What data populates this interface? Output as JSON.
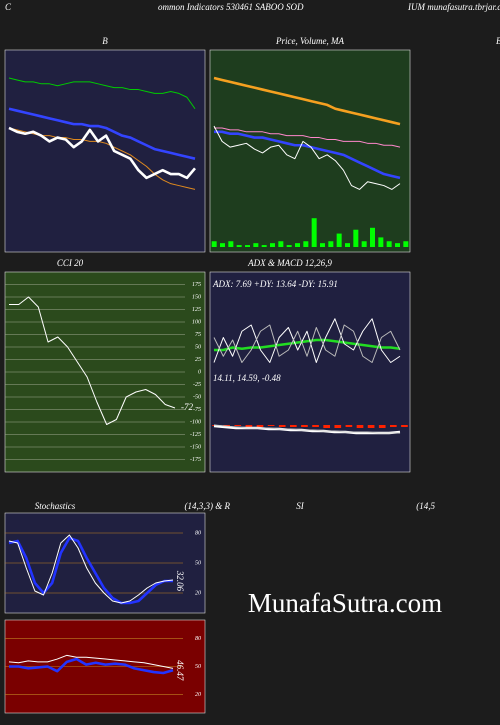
{
  "header": {
    "left": "C",
    "middle": "ommon  Indicators 530461 SABOO SOD",
    "right": "IUM munafasutra.tbrjar.com",
    "edge": "B"
  },
  "watermark": "MunafaSutra.com",
  "chart_data": [
    {
      "type": "line",
      "title": "B",
      "ylim": [
        0,
        100
      ],
      "series": [
        {
          "color": "#00cc00",
          "values": [
            88,
            87,
            86,
            86,
            85,
            85,
            84,
            85,
            86,
            86,
            86,
            85,
            84,
            83,
            83,
            82,
            82,
            81,
            80,
            80,
            81,
            80,
            78,
            72
          ]
        },
        {
          "color": "#3344ff",
          "thick": true,
          "values": [
            72,
            71,
            70,
            69,
            68,
            67,
            66,
            65,
            64,
            64,
            63,
            63,
            62,
            60,
            58,
            57,
            55,
            53,
            51,
            50,
            49,
            48,
            47,
            46
          ]
        },
        {
          "color": "#e08a1e",
          "values": [
            62,
            61,
            60,
            59,
            58,
            58,
            57,
            57,
            56,
            56,
            55,
            55,
            54,
            52,
            50,
            48,
            45,
            42,
            38,
            35,
            33,
            32,
            31,
            30
          ]
        },
        {
          "color": "#ffffff",
          "thick": true,
          "values": [
            62,
            60,
            59,
            60,
            58,
            55,
            57,
            56,
            52,
            55,
            61,
            55,
            58,
            50,
            48,
            46,
            40,
            36,
            38,
            40,
            38,
            38,
            36,
            41
          ]
        }
      ]
    },
    {
      "type": "line",
      "title": "Price, Volume, MA",
      "ylim": [
        0,
        100
      ],
      "bars": {
        "color": "#00ff00",
        "values": [
          3,
          2,
          3,
          1,
          1,
          2,
          1,
          2,
          3,
          1,
          2,
          3,
          15,
          2,
          3,
          7,
          2,
          9,
          3,
          10,
          5,
          3,
          2,
          3
        ]
      },
      "series": [
        {
          "color": "#f5a020",
          "thick": true,
          "values": [
            88,
            87,
            86,
            85,
            84,
            83,
            82,
            81,
            80,
            79,
            78,
            77,
            76,
            75,
            74,
            72,
            71,
            70,
            69,
            68,
            67,
            66,
            65,
            64
          ]
        },
        {
          "color": "#ff88cc",
          "values": [
            62,
            62,
            61,
            61,
            60,
            60,
            60,
            59,
            59,
            58,
            58,
            58,
            57,
            57,
            56,
            56,
            55,
            55,
            55,
            54,
            54,
            53,
            53,
            52
          ]
        },
        {
          "color": "#3344ff",
          "thick": true,
          "values": [
            60,
            60,
            59,
            59,
            58,
            57,
            57,
            56,
            55,
            54,
            53,
            53,
            52,
            51,
            50,
            49,
            48,
            46,
            44,
            42,
            40,
            38,
            37,
            36
          ]
        },
        {
          "color": "#ffffff",
          "values": [
            63,
            55,
            52,
            53,
            54,
            51,
            49,
            52,
            53,
            48,
            46,
            55,
            52,
            46,
            48,
            45,
            40,
            32,
            30,
            34,
            33,
            32,
            30,
            33
          ]
        }
      ]
    },
    {
      "type": "line",
      "title": "CCI 20",
      "ylim": [
        -200,
        200
      ],
      "grid": true,
      "yticks": [
        175,
        150,
        125,
        100,
        75,
        50,
        25,
        0,
        -25,
        -50,
        -75,
        -100,
        -125,
        -150,
        -175
      ],
      "annotation": "-72",
      "series": [
        {
          "color": "#ffffff",
          "values": [
            135,
            135,
            150,
            130,
            60,
            70,
            50,
            20,
            -10,
            -60,
            -105,
            -95,
            -50,
            -40,
            -35,
            -45,
            -65,
            -72
          ]
        }
      ]
    },
    {
      "type": "line",
      "title": "ADX  & MACD 12,26,9",
      "subtitle": "ADX: 7.69 +DY: 13.64  -DY: 15.91",
      "ylim": [
        0,
        60
      ],
      "series": [
        {
          "color": "#22dd22",
          "thick": true,
          "values": [
            20,
            20,
            22,
            21,
            22,
            22,
            23,
            24,
            25,
            26,
            27,
            28,
            28,
            27,
            26,
            25,
            24,
            23,
            22,
            22,
            21
          ]
        },
        {
          "color": "#ffffff",
          "values": [
            10,
            30,
            15,
            35,
            40,
            20,
            10,
            30,
            38,
            20,
            35,
            10,
            30,
            45,
            25,
            20,
            35,
            45,
            20,
            10,
            15
          ]
        },
        {
          "color": "#bbbbbb",
          "values": [
            30,
            15,
            28,
            10,
            20,
            35,
            40,
            15,
            20,
            35,
            15,
            38,
            20,
            15,
            40,
            35,
            15,
            10,
            30,
            35,
            20
          ]
        }
      ]
    },
    {
      "type": "line",
      "title": "14.11,  14.59,  -0.48",
      "ylim": [
        -30,
        30
      ],
      "bars": {
        "color": "#ff2200",
        "values": [
          -1,
          -1,
          -1,
          -2,
          -2,
          -1,
          -2,
          -2,
          -2,
          -2,
          -3,
          -3,
          -2,
          -3,
          -3,
          -3,
          -2,
          -2
        ]
      },
      "series": [
        {
          "color": "#ffffff",
          "thick": true,
          "values": [
            -1,
            -2,
            -3,
            -3,
            -3,
            -4,
            -4,
            -5,
            -5,
            -6,
            -6,
            -7,
            -7,
            -8,
            -8,
            -8,
            -8,
            -7
          ]
        },
        {
          "color": "#cccccc",
          "values": [
            0,
            -1,
            -2,
            -3,
            -3,
            -3,
            -4,
            -4,
            -5,
            -5,
            -6,
            -6,
            -7,
            -7,
            -7,
            -8,
            -8,
            -8
          ]
        }
      ]
    },
    {
      "type": "line",
      "title": "Stochastics",
      "subtitle": "(14,3,3) & R",
      "ylim": [
        0,
        100
      ],
      "grid": true,
      "yticks": [
        80,
        50,
        20
      ],
      "annotation": "32.06",
      "series": [
        {
          "color": "#2233ff",
          "thick": true,
          "values": [
            70,
            72,
            55,
            30,
            20,
            30,
            60,
            75,
            72,
            55,
            40,
            25,
            15,
            10,
            10,
            12,
            20,
            28,
            32,
            32
          ]
        },
        {
          "color": "#ffffff",
          "values": [
            72,
            70,
            45,
            22,
            18,
            40,
            70,
            78,
            65,
            45,
            30,
            20,
            12,
            10,
            12,
            18,
            25,
            30,
            32,
            33
          ]
        }
      ]
    },
    {
      "type": "line",
      "title": "SI",
      "subtitle": "(14,5",
      "ylim": [
        0,
        100
      ],
      "grid": true,
      "yticks": [
        80,
        50,
        20
      ],
      "annotation": "46.47",
      "series": [
        {
          "color": "#2233ff",
          "thick": true,
          "values": [
            50,
            50,
            48,
            49,
            50,
            45,
            55,
            58,
            52,
            54,
            52,
            53,
            52,
            48,
            46,
            44,
            43,
            46
          ]
        },
        {
          "color": "#ffffff",
          "values": [
            55,
            54,
            56,
            55,
            55,
            58,
            62,
            60,
            60,
            59,
            58,
            57,
            56,
            55,
            54,
            52,
            50,
            48
          ]
        }
      ]
    }
  ]
}
